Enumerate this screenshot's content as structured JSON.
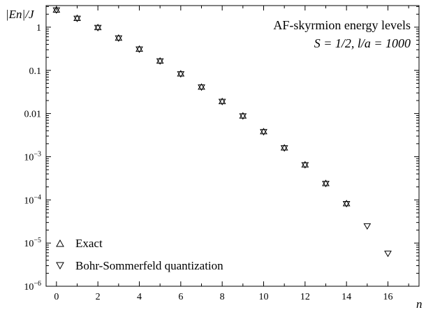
{
  "chart_data": {
    "type": "scatter",
    "title_lines": [
      "AF-skyrmion energy levels",
      "S = 1/2, l/a = 1000"
    ],
    "xlabel": "n",
    "ylabel": "|En|/J",
    "xlim": [
      -0.5,
      17.5
    ],
    "ylim_log10": [
      -6,
      0.5
    ],
    "yscale": "log",
    "x_ticks": [
      0,
      2,
      4,
      6,
      8,
      10,
      12,
      14,
      16
    ],
    "y_ticks": [
      {
        "value": 1,
        "label": "1"
      },
      {
        "value": 0.1,
        "label": "0.1"
      },
      {
        "value": 0.01,
        "label": "0.01"
      },
      {
        "value": 0.001,
        "label": "10",
        "exp": "−3"
      },
      {
        "value": 0.0001,
        "label": "10",
        "exp": "−4"
      },
      {
        "value": 1e-05,
        "label": "10",
        "exp": "−5"
      },
      {
        "value": 1e-06,
        "label": "10",
        "exp": "−6"
      }
    ],
    "legend_position": "bottom-left",
    "series": [
      {
        "name": "Exact",
        "marker": "triangle-up",
        "x": [
          0,
          1,
          2,
          3,
          4,
          5,
          6,
          7,
          8,
          9,
          10,
          11,
          12,
          13,
          14
        ],
        "y": [
          2.5,
          1.6,
          0.98,
          0.56,
          0.31,
          0.165,
          0.083,
          0.041,
          0.019,
          0.0088,
          0.0038,
          0.0016,
          0.00065,
          0.00024,
          8.2e-05
        ]
      },
      {
        "name": "Bohr-Sommerfeld quantization",
        "marker": "triangle-down",
        "x": [
          0,
          1,
          2,
          3,
          4,
          5,
          6,
          7,
          8,
          9,
          10,
          11,
          12,
          13,
          14,
          15,
          16
        ],
        "y": [
          2.5,
          1.6,
          0.98,
          0.56,
          0.31,
          0.165,
          0.083,
          0.041,
          0.019,
          0.0088,
          0.0038,
          0.0016,
          0.00065,
          0.00024,
          8.2e-05,
          2.5e-05,
          5.8e-06
        ]
      }
    ]
  }
}
